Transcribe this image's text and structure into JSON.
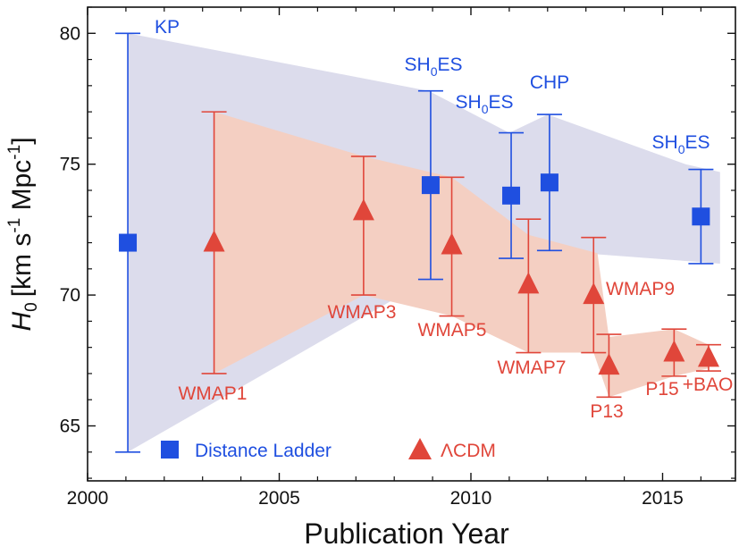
{
  "chart_data": {
    "type": "scatter",
    "xlabel": "Publication Year",
    "ylabel": {
      "base": "H",
      "sub": "0",
      "unit_a": "[km s",
      "sup_a": "-1",
      "unit_b": " Mpc",
      "sup_b": "-1",
      "unit_c": "]"
    },
    "xlim": [
      2000,
      2016.9
    ],
    "ylim": [
      62.9,
      81.0
    ],
    "xticks": [
      2000,
      2005,
      2010,
      2015
    ],
    "yticks": [
      65,
      70,
      75,
      80
    ],
    "grid": false,
    "legend": {
      "placement": "bottom-left",
      "items": [
        {
          "name": "Distance Ladder",
          "marker": "square",
          "color": "#1f4fe0"
        },
        {
          "name": "ΛCDM",
          "marker": "triangle",
          "color": "#e0463a"
        }
      ]
    },
    "colors": {
      "ladder": "#1f4fe0",
      "cmb": "#e0463a",
      "ladder_band": "#dcdcec",
      "cmb_band": "#f4cfc2"
    },
    "bands": {
      "ladder": {
        "upper": [
          [
            2001.05,
            80.0
          ],
          [
            2008.9,
            77.8
          ],
          [
            2011.0,
            76.2
          ],
          [
            2012.0,
            76.9
          ],
          [
            2015.6,
            75.0
          ],
          [
            2016.5,
            74.7
          ]
        ],
        "lower": [
          [
            2016.5,
            71.2
          ],
          [
            2015.6,
            71.3
          ],
          [
            2012.0,
            71.7
          ],
          [
            2011.0,
            71.5
          ],
          [
            2008.9,
            70.6
          ],
          [
            2001.05,
            64.0
          ]
        ]
      },
      "cmb": {
        "upper": [
          [
            2003.3,
            77.0
          ],
          [
            2007.2,
            75.3
          ],
          [
            2009.5,
            74.5
          ],
          [
            2011.5,
            72.3
          ],
          [
            2013.3,
            71.6
          ],
          [
            2013.6,
            68.4
          ],
          [
            2015.3,
            68.7
          ],
          [
            2016.2,
            68.1
          ]
        ],
        "lower": [
          [
            2016.2,
            67.2
          ],
          [
            2015.3,
            66.9
          ],
          [
            2013.6,
            66.1
          ],
          [
            2013.2,
            67.8
          ],
          [
            2011.5,
            67.8
          ],
          [
            2009.5,
            69.2
          ],
          [
            2007.2,
            70.0
          ],
          [
            2003.3,
            67.0
          ]
        ]
      }
    },
    "series": [
      {
        "name": "Distance Ladder",
        "marker": "square",
        "points": [
          {
            "x": 2001.05,
            "y": 72.0,
            "lo": 64.0,
            "hi": 80.0,
            "label": {
              "base": "KP",
              "sub": "",
              "tail": ""
            }
          },
          {
            "x": 2008.95,
            "y": 74.2,
            "lo": 70.6,
            "hi": 77.8,
            "label": {
              "base": "SH",
              "sub": "0",
              "tail": "ES"
            }
          },
          {
            "x": 2011.05,
            "y": 73.8,
            "lo": 71.4,
            "hi": 76.2,
            "label": {
              "base": "SH",
              "sub": "0",
              "tail": "ES"
            }
          },
          {
            "x": 2012.05,
            "y": 74.3,
            "lo": 71.7,
            "hi": 76.9,
            "label": {
              "base": "CHP",
              "sub": "",
              "tail": ""
            }
          },
          {
            "x": 2016.0,
            "y": 73.0,
            "lo": 71.2,
            "hi": 74.8,
            "label": {
              "base": "SH",
              "sub": "0",
              "tail": "ES"
            }
          }
        ]
      },
      {
        "name": "ΛCDM",
        "marker": "triangle",
        "points": [
          {
            "x": 2003.3,
            "y": 72.0,
            "lo": 67.0,
            "hi": 77.0,
            "label": "WMAP1"
          },
          {
            "x": 2007.2,
            "y": 73.2,
            "lo": 70.0,
            "hi": 75.3,
            "label": "WMAP3"
          },
          {
            "x": 2009.5,
            "y": 71.9,
            "lo": 69.2,
            "hi": 74.5,
            "label": "WMAP5"
          },
          {
            "x": 2011.5,
            "y": 70.4,
            "lo": 67.8,
            "hi": 72.9,
            "label": "WMAP7"
          },
          {
            "x": 2013.2,
            "y": 70.0,
            "lo": 67.8,
            "hi": 72.2,
            "label": "WMAP9"
          },
          {
            "x": 2013.6,
            "y": 67.3,
            "lo": 66.1,
            "hi": 68.5,
            "label": "P13"
          },
          {
            "x": 2015.3,
            "y": 67.8,
            "lo": 66.9,
            "hi": 68.7,
            "label": "P15"
          },
          {
            "x": 2016.2,
            "y": 67.6,
            "lo": 67.1,
            "hi": 68.1,
            "label": "+BAO"
          }
        ]
      }
    ]
  }
}
